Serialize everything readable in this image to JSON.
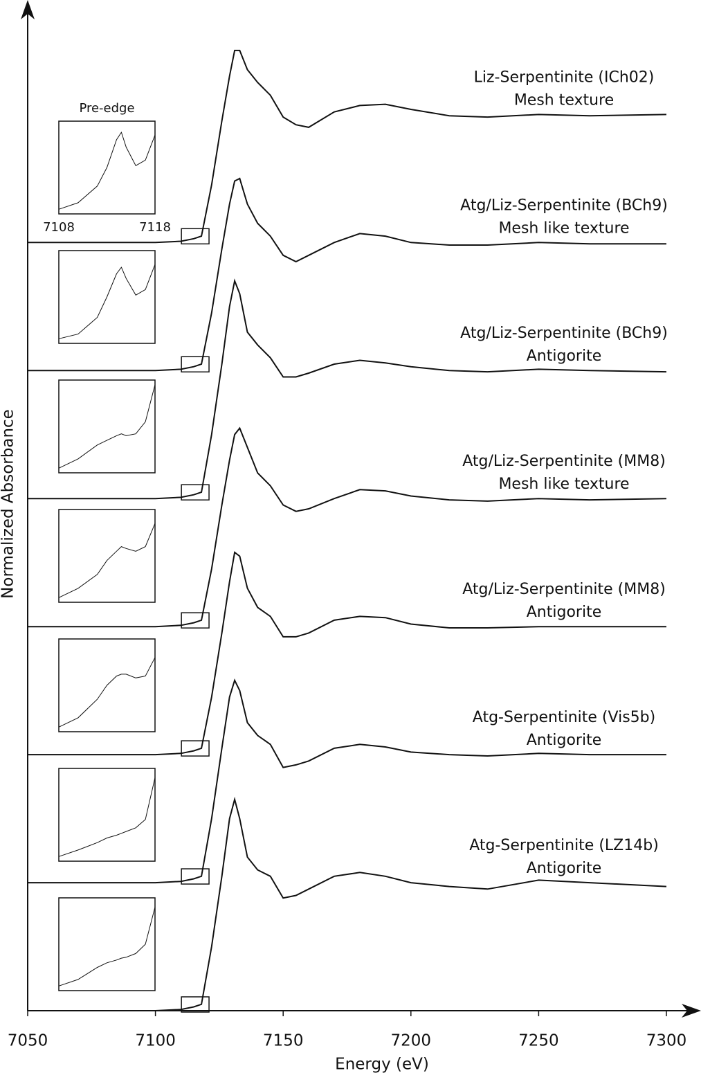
{
  "chart_data": {
    "type": "line",
    "xlabel": "Energy (eV)",
    "ylabel": "Normalized Absorbance",
    "xlim": [
      7050,
      7300
    ],
    "xticks": [
      7050,
      7100,
      7150,
      7200,
      7250,
      7300
    ],
    "ylim": [
      0,
      7.84
    ],
    "color": "#111111",
    "x": [
      7050,
      7100,
      7110,
      7115,
      7118,
      7122,
      7126,
      7129,
      7131,
      7133,
      7136,
      7140,
      7145,
      7150,
      7155,
      7160,
      7170,
      7180,
      7190,
      7200,
      7215,
      7230,
      7250,
      7270,
      7300
    ],
    "series": [
      {
        "name": "Liz-Serpentinite (ICh02)",
        "texture": "Mesh texture",
        "values": [
          6,
          6,
          6.01,
          6.03,
          6.05,
          6.45,
          6.95,
          7.3,
          7.5,
          7.5,
          7.35,
          7.25,
          7.15,
          6.98,
          6.92,
          6.9,
          7.02,
          7.07,
          7.08,
          7.04,
          6.99,
          6.98,
          7.0,
          6.99,
          7.0
        ]
      },
      {
        "name": "Atg/Liz-Serpentinite (BCh9)",
        "texture": "Mesh like texture",
        "values": [
          5,
          5,
          5.01,
          5.03,
          5.05,
          5.45,
          5.95,
          6.3,
          6.48,
          6.5,
          6.3,
          6.15,
          6.05,
          5.9,
          5.85,
          5.9,
          6.0,
          6.07,
          6.05,
          6.0,
          5.98,
          5.98,
          6.0,
          5.99,
          5.99
        ]
      },
      {
        "name": "Atg/Liz-Serpentinite (BCh9)",
        "texture": "Antigorite",
        "values": [
          4,
          4,
          4.01,
          4.03,
          4.05,
          4.5,
          5.05,
          5.5,
          5.7,
          5.6,
          5.3,
          5.2,
          5.1,
          4.95,
          4.95,
          4.98,
          5.05,
          5.08,
          5.06,
          5.03,
          5.0,
          4.99,
          5.01,
          5.0,
          4.99
        ]
      },
      {
        "name": "Atg/Liz-Serpentinite (MM8)",
        "texture": "Mesh like texture",
        "values": [
          3,
          3,
          3.01,
          3.03,
          3.05,
          3.45,
          3.95,
          4.3,
          4.5,
          4.55,
          4.4,
          4.2,
          4.1,
          3.95,
          3.9,
          3.92,
          4.0,
          4.07,
          4.06,
          4.02,
          3.99,
          3.98,
          4.0,
          3.99,
          4.0
        ]
      },
      {
        "name": "Atg/Liz-Serpentinite (MM8)",
        "texture": "Antigorite",
        "values": [
          2,
          2,
          2.01,
          2.03,
          2.05,
          2.45,
          2.95,
          3.35,
          3.58,
          3.55,
          3.3,
          3.15,
          3.08,
          2.92,
          2.92,
          2.95,
          3.05,
          3.08,
          3.07,
          3.02,
          2.99,
          2.99,
          3.0,
          3.0,
          3.0
        ]
      },
      {
        "name": "Atg-Serpentinite (Vis5b)",
        "texture": "Antigorite",
        "values": [
          1,
          1,
          1.01,
          1.03,
          1.05,
          1.5,
          2.05,
          2.45,
          2.58,
          2.5,
          2.25,
          2.15,
          2.08,
          1.9,
          1.92,
          1.95,
          2.05,
          2.08,
          2.06,
          2.02,
          2.0,
          1.99,
          2.01,
          2.0,
          2.0
        ]
      },
      {
        "name": "Atg-Serpentinite (LZ14b)",
        "texture": "Antigorite",
        "values": [
          0,
          0,
          0.01,
          0.03,
          0.05,
          0.5,
          1.05,
          1.5,
          1.65,
          1.5,
          1.2,
          1.1,
          1.05,
          0.88,
          0.9,
          0.95,
          1.05,
          1.08,
          1.05,
          1.0,
          0.97,
          0.95,
          1.02,
          1.0,
          0.97
        ]
      }
    ],
    "inset": {
      "title": "Pre-edge",
      "xlim": [
        7108,
        7118
      ],
      "xticks": [
        7108,
        7118
      ],
      "ylim": [
        0,
        1
      ],
      "x": [
        7108,
        7110,
        7112,
        7113,
        7114,
        7114.5,
        7115,
        7116,
        7117,
        7118
      ],
      "series": [
        {
          "values": [
            0.05,
            0.12,
            0.3,
            0.5,
            0.8,
            0.88,
            0.72,
            0.52,
            0.58,
            0.85
          ]
        },
        {
          "values": [
            0.05,
            0.1,
            0.28,
            0.5,
            0.75,
            0.82,
            0.7,
            0.52,
            0.58,
            0.85
          ]
        },
        {
          "values": [
            0.05,
            0.15,
            0.3,
            0.35,
            0.4,
            0.42,
            0.4,
            0.42,
            0.55,
            0.95
          ]
        },
        {
          "values": [
            0.05,
            0.15,
            0.3,
            0.45,
            0.55,
            0.6,
            0.58,
            0.55,
            0.6,
            0.85
          ]
        },
        {
          "values": [
            0.05,
            0.15,
            0.35,
            0.5,
            0.6,
            0.62,
            0.62,
            0.58,
            0.6,
            0.8
          ]
        },
        {
          "values": [
            0.05,
            0.12,
            0.2,
            0.25,
            0.28,
            0.3,
            0.32,
            0.36,
            0.45,
            0.9
          ]
        },
        {
          "values": [
            0.05,
            0.12,
            0.25,
            0.3,
            0.33,
            0.35,
            0.36,
            0.4,
            0.5,
            0.9
          ]
        }
      ]
    }
  }
}
